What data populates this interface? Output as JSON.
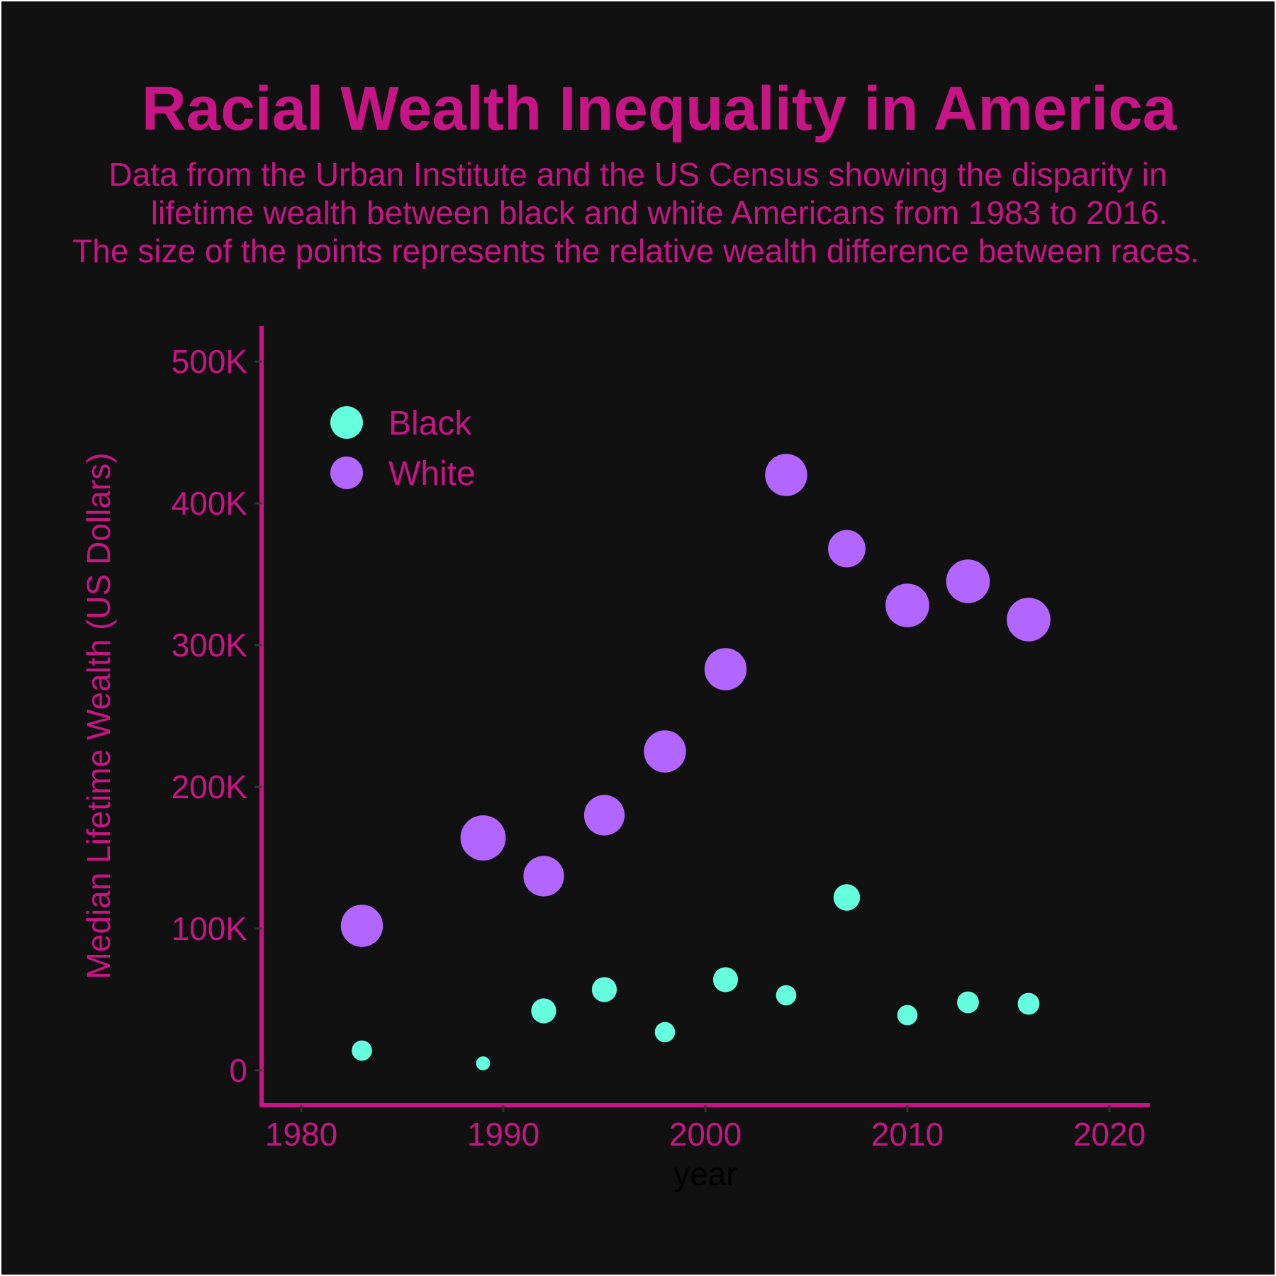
{
  "colors": {
    "background": "#111111",
    "accent": "#C71585",
    "tick_mark": "#333333",
    "xlabel_color": "#000000",
    "black_series": "#66FFDD",
    "white_series": "#B266FF"
  },
  "chart_data": {
    "type": "scatter",
    "title": "Racial Wealth Inequality in America",
    "subtitle": [
      "Data from the Urban Institute and the US Census showing the disparity in",
      "lifetime wealth between black and white Americans from 1983 to 2016.",
      "The size of the points represents the relative wealth difference between races."
    ],
    "xlabel": "year",
    "ylabel": "Median Lifetime Wealth (US Dollars)",
    "xlim": [
      1978,
      2022
    ],
    "ylim": [
      -25000,
      525000
    ],
    "x_ticks": [
      1980,
      1990,
      2000,
      2010,
      2020
    ],
    "x_tick_labels": [
      "1980",
      "1990",
      "2000",
      "2010",
      "2020"
    ],
    "y_ticks": [
      0,
      100000,
      200000,
      300000,
      400000,
      500000
    ],
    "y_tick_labels": [
      "0",
      "100K",
      "200K",
      "300K",
      "400K",
      "500K"
    ],
    "grid": false,
    "legend_position": "top-left",
    "size_encoding": "relative wealth difference between races",
    "series": [
      {
        "name": "Black",
        "color": "#66FFDD",
        "points": [
          {
            "x": 1983,
            "y": 14000,
            "size": 1.3
          },
          {
            "x": 1989,
            "y": 5000,
            "size": 0.9
          },
          {
            "x": 1992,
            "y": 42000,
            "size": 1.6
          },
          {
            "x": 1995,
            "y": 57000,
            "size": 1.6
          },
          {
            "x": 1998,
            "y": 27000,
            "size": 1.3
          },
          {
            "x": 2001,
            "y": 64000,
            "size": 1.6
          },
          {
            "x": 2004,
            "y": 53000,
            "size": 1.3
          },
          {
            "x": 2007,
            "y": 122000,
            "size": 1.7
          },
          {
            "x": 2010,
            "y": 39000,
            "size": 1.3
          },
          {
            "x": 2013,
            "y": 48000,
            "size": 1.4
          },
          {
            "x": 2016,
            "y": 47000,
            "size": 1.4
          }
        ]
      },
      {
        "name": "White",
        "color": "#B266FF",
        "points": [
          {
            "x": 1983,
            "y": 102000,
            "size": 2.7
          },
          {
            "x": 1989,
            "y": 164000,
            "size": 2.9
          },
          {
            "x": 1992,
            "y": 137000,
            "size": 2.6
          },
          {
            "x": 1995,
            "y": 180000,
            "size": 2.6
          },
          {
            "x": 1998,
            "y": 225000,
            "size": 2.7
          },
          {
            "x": 2001,
            "y": 283000,
            "size": 2.7
          },
          {
            "x": 2004,
            "y": 420000,
            "size": 2.7
          },
          {
            "x": 2007,
            "y": 368000,
            "size": 2.4
          },
          {
            "x": 2010,
            "y": 328000,
            "size": 2.8
          },
          {
            "x": 2013,
            "y": 345000,
            "size": 2.8
          },
          {
            "x": 2016,
            "y": 318000,
            "size": 2.8
          }
        ]
      }
    ]
  }
}
